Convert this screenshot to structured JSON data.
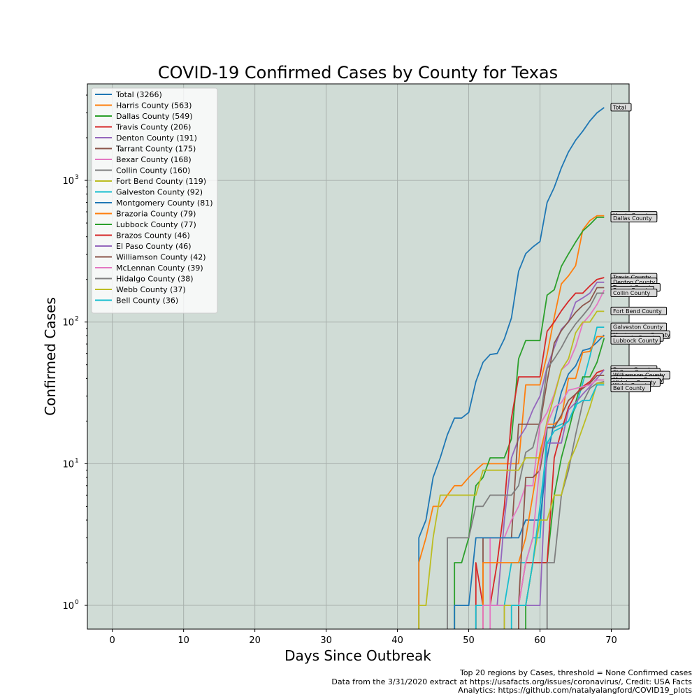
{
  "chart_data": {
    "type": "line",
    "title": "COVID-19  Confirmed Cases by County for Texas",
    "xlabel": "Days Since Outbreak",
    "ylabel": "Confirmed Cases",
    "xlim": [
      -3.5,
      72.5
    ],
    "ylim": [
      0.68,
      4800
    ],
    "yscale": "log",
    "grid": true,
    "legend_position": "top-left",
    "plot_background": "#d0dcd6",
    "x_ticks": [
      0,
      10,
      20,
      30,
      40,
      50,
      60,
      70
    ],
    "y_ticks": [
      {
        "value": 1,
        "base": "10",
        "exp": "0"
      },
      {
        "value": 10,
        "base": "10",
        "exp": "1"
      },
      {
        "value": 100,
        "base": "10",
        "exp": "2"
      },
      {
        "value": 1000,
        "base": "10",
        "exp": "3"
      }
    ],
    "series": [
      {
        "name": "Total (3266)",
        "end_label": "Total",
        "color": "#1f77b4",
        "x": [
          43,
          44,
          45,
          46,
          47,
          48,
          49,
          50,
          51,
          52,
          53,
          54,
          55,
          56,
          57,
          58,
          59,
          60,
          61,
          62,
          63,
          64,
          65,
          66,
          67,
          68,
          69
        ],
        "y": [
          3,
          4,
          8,
          11,
          16,
          21,
          21,
          23,
          38,
          52,
          59,
          60,
          76,
          107,
          228,
          304,
          339,
          370,
          698,
          892,
          1226,
          1589,
          1922,
          2225,
          2630,
          3000,
          3266
        ]
      },
      {
        "name": "Harris County (563)",
        "end_label": "Harris County",
        "color": "#ff7f0e",
        "x": [
          43,
          44,
          45,
          46,
          47,
          48,
          49,
          50,
          51,
          52,
          53,
          54,
          55,
          56,
          57,
          58,
          59,
          60,
          61,
          62,
          63,
          64,
          65,
          66,
          67,
          68,
          69
        ],
        "y": [
          2,
          3,
          5,
          5,
          6,
          7,
          7,
          8,
          9,
          10,
          10,
          10,
          10,
          10,
          10,
          36,
          36,
          36,
          59,
          108,
          186,
          212,
          250,
          447,
          520,
          563,
          563
        ]
      },
      {
        "name": "Dallas County (549)",
        "end_label": "Dallas County",
        "color": "#2ca02c",
        "x": [
          48,
          49,
          50,
          51,
          52,
          53,
          54,
          55,
          56,
          57,
          58,
          59,
          60,
          61,
          62,
          63,
          64,
          65,
          66,
          67,
          68,
          69
        ],
        "y": [
          2,
          2,
          3,
          7,
          8,
          11,
          11,
          11,
          15,
          55,
          74,
          74,
          74,
          155,
          169,
          247,
          303,
          367,
          439,
          488,
          549,
          549
        ]
      },
      {
        "name": "Travis County (206)",
        "end_label": "Travis County",
        "color": "#d62728",
        "x": [
          51,
          52,
          53,
          54,
          55,
          56,
          57,
          58,
          59,
          60,
          61,
          62,
          63,
          64,
          65,
          66,
          67,
          68,
          69
        ],
        "y": [
          2,
          1,
          1,
          2,
          5,
          21,
          41,
          41,
          41,
          41,
          86,
          100,
          120,
          140,
          160,
          160,
          180,
          200,
          206
        ]
      },
      {
        "name": "Denton County (191)",
        "end_label": "Denton County",
        "color": "#9467bd",
        "x": [
          52,
          53,
          54,
          55,
          56,
          57,
          58,
          59,
          60,
          61,
          62,
          63,
          64,
          65,
          66,
          67,
          68,
          69
        ],
        "y": [
          1,
          1,
          1,
          4,
          11,
          15,
          18,
          24,
          30,
          48,
          66,
          89,
          100,
          138,
          148,
          160,
          191,
          191
        ]
      },
      {
        "name": "Tarrant County (175)",
        "end_label": "Tarrant County",
        "color": "#8c564b",
        "x": [
          52,
          53,
          54,
          55,
          56,
          57,
          58,
          59,
          60,
          61,
          62,
          63,
          64,
          65,
          66,
          67,
          68,
          69
        ],
        "y": [
          3,
          3,
          3,
          3,
          3,
          19,
          19,
          19,
          19,
          38,
          71,
          87,
          101,
          117,
          131,
          141,
          175,
          175
        ]
      },
      {
        "name": "Bexar County (168)",
        "end_label": "Bexar County",
        "color": "#e377c2",
        "x": [
          53,
          54,
          55,
          56,
          57,
          58,
          59,
          60,
          61,
          62,
          63,
          64,
          65,
          66,
          67,
          68,
          69
        ],
        "y": [
          3,
          3,
          3,
          4,
          5,
          7,
          7,
          19,
          23,
          31,
          46,
          51,
          67,
          98,
          112,
          133,
          168
        ]
      },
      {
        "name": "Collin County (160)",
        "end_label": "Collin County",
        "color": "#7f7f7f",
        "x": [
          47,
          48,
          49,
          50,
          51,
          52,
          53,
          54,
          55,
          56,
          57,
          58,
          59,
          60,
          61,
          62,
          63,
          64,
          65,
          66,
          67,
          68,
          69
        ],
        "y": [
          3,
          3,
          3,
          3,
          5,
          5,
          6,
          6,
          6,
          6,
          7,
          12,
          13,
          20,
          47,
          55,
          66,
          82,
          97,
          111,
          128,
          160,
          160
        ]
      },
      {
        "name": "Fort Bend County (119)",
        "end_label": "Fort Bend County",
        "color": "#bcbd22",
        "x": [
          43,
          44,
          45,
          46,
          47,
          48,
          49,
          50,
          51,
          52,
          53,
          54,
          55,
          56,
          57,
          58,
          59,
          60,
          61,
          62,
          63,
          64,
          65,
          66,
          67,
          68,
          69
        ],
        "y": [
          1,
          1,
          3,
          6,
          6,
          6,
          6,
          6,
          6,
          9,
          9,
          9,
          9,
          9,
          9,
          11,
          11,
          11,
          20,
          30,
          46,
          55,
          84,
          100,
          100,
          119,
          119
        ]
      },
      {
        "name": "Galveston County (92)",
        "end_label": "Galveston County",
        "color": "#17becf",
        "x": [
          51,
          52,
          53,
          54,
          55,
          56,
          57,
          58,
          59,
          60,
          61,
          62,
          63,
          64,
          65,
          66,
          67,
          68,
          69
        ],
        "y": [
          1,
          1,
          1,
          1,
          1,
          2,
          2,
          2,
          3,
          3,
          18,
          18,
          19,
          20,
          25,
          37,
          57,
          92,
          92
        ]
      },
      {
        "name": "Montgomery County (81)",
        "end_label": "Montgomery County",
        "color": "#1f77b4",
        "x": [
          48,
          49,
          50,
          51,
          52,
          53,
          54,
          55,
          56,
          57,
          58,
          59,
          60,
          61,
          62,
          63,
          64,
          65,
          66,
          67,
          68,
          69
        ],
        "y": [
          1,
          1,
          1,
          3,
          3,
          3,
          3,
          3,
          3,
          3,
          4,
          4,
          4,
          11,
          20,
          32,
          43,
          49,
          63,
          65,
          72,
          81
        ]
      },
      {
        "name": "Brazoria County (79)",
        "end_label": "Brazoria County",
        "color": "#ff7f0e",
        "x": [
          52,
          53,
          54,
          55,
          56,
          57,
          58,
          59,
          60,
          61,
          62,
          63,
          64,
          65,
          66,
          67,
          68,
          69
        ],
        "y": [
          2,
          2,
          2,
          2,
          2,
          2,
          3,
          6,
          12,
          19,
          19,
          21,
          40,
          40,
          61,
          62,
          79,
          79
        ]
      },
      {
        "name": "Lubbock County (77)",
        "end_label": "Lubbock County",
        "color": "#2ca02c",
        "x": [
          58,
          59,
          60,
          61,
          62,
          63,
          64,
          65,
          66,
          67,
          68,
          69
        ],
        "y": [
          1,
          2,
          2,
          2,
          6,
          11,
          17,
          27,
          41,
          41,
          52,
          77
        ]
      },
      {
        "name": "Brazos County (46)",
        "end_label": "Brazos County",
        "color": "#d62728",
        "x": [
          57,
          58,
          59,
          60,
          61,
          62,
          63,
          64,
          65,
          66,
          67,
          68,
          69
        ],
        "y": [
          1,
          2,
          2,
          2,
          2,
          11,
          17,
          25,
          31,
          35,
          38,
          44,
          46
        ]
      },
      {
        "name": "El Paso County (46)",
        "end_label": "El Paso County",
        "color": "#9467bd",
        "x": [
          55,
          56,
          57,
          58,
          59,
          60,
          61,
          62,
          63,
          64,
          65,
          66,
          67,
          68,
          69
        ],
        "y": [
          1,
          1,
          1,
          1,
          1,
          1,
          14,
          14,
          14,
          24,
          27,
          31,
          35,
          40,
          46
        ]
      },
      {
        "name": "Williamson County (42)",
        "end_label": "Williamson County",
        "color": "#8c564b",
        "x": [
          57,
          58,
          59,
          60,
          61,
          62,
          63,
          64,
          65,
          66,
          67,
          68,
          69
        ],
        "y": [
          1,
          8,
          8,
          9,
          18,
          18,
          22,
          28,
          31,
          34,
          37,
          42,
          42
        ]
      },
      {
        "name": "McLennan County (39)",
        "end_label": "McLennan County",
        "color": "#e377c2",
        "x": [
          52,
          53,
          54,
          55,
          56,
          57,
          58,
          59,
          60,
          61,
          62,
          63,
          64,
          65,
          66,
          67,
          68,
          69
        ],
        "y": [
          1,
          1,
          1,
          1,
          1,
          1,
          2,
          3,
          10,
          19,
          25,
          27,
          33,
          34,
          35,
          36,
          39,
          39
        ]
      },
      {
        "name": "Hidalgo County (38)",
        "end_label": "Hidalgo County",
        "color": "#7f7f7f",
        "x": [
          61,
          62,
          63,
          64,
          65,
          66,
          67,
          68,
          69
        ],
        "y": [
          2,
          2,
          6,
          9,
          16,
          27,
          34,
          37,
          38
        ]
      },
      {
        "name": "Webb County (37)",
        "end_label": "Webb County",
        "color": "#bcbd22",
        "x": [
          55,
          56,
          57,
          58,
          59,
          60,
          61,
          62,
          63,
          64,
          65,
          66,
          67,
          68,
          69
        ],
        "y": [
          1,
          1,
          1,
          1,
          2,
          4,
          4,
          6,
          6,
          10,
          13,
          18,
          25,
          37,
          37
        ]
      },
      {
        "name": "Bell County (36)",
        "end_label": "Bell County",
        "color": "#17becf",
        "x": [
          56,
          57,
          58,
          59,
          60,
          61,
          62,
          63,
          64,
          65,
          66,
          67,
          68,
          69
        ],
        "y": [
          1,
          1,
          1,
          2,
          5,
          14,
          17,
          18,
          20,
          26,
          28,
          28,
          36,
          36
        ]
      }
    ]
  },
  "footer": {
    "line1": "Top 20 regions by Cases, threshold = None Confirmed cases",
    "line2": "Data from the 3/31/2020 extract at https://usafacts.org/issues/coronavirus/, Credit: USA Facts",
    "line3": "Analytics: https://github.com/natalyalangford/COVID19_plots"
  }
}
